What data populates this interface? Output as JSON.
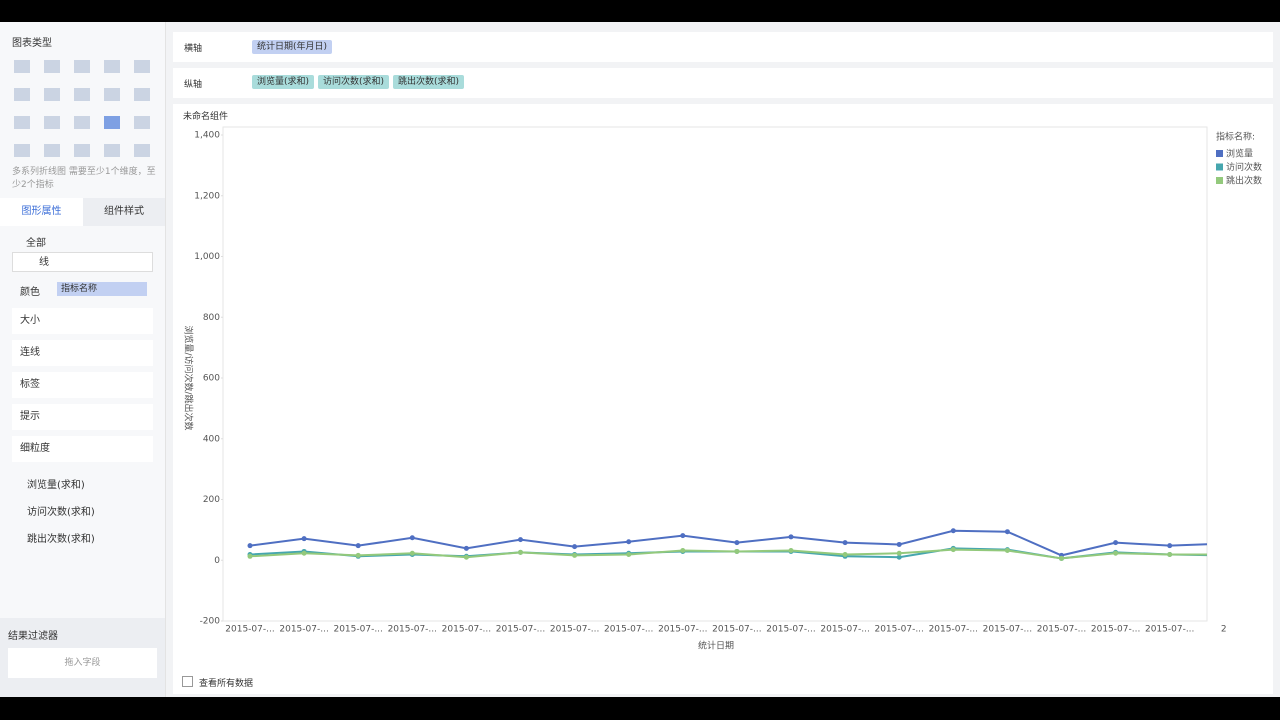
{
  "sidebar": {
    "title": "图表类型",
    "hint": "多系列折线图 需要至少1个维度，至少2个指标",
    "tabs": [
      "图形属性",
      "组件样式"
    ],
    "all": "全部",
    "mark_type": "线",
    "color_label": "颜色",
    "color_field": "指标名称",
    "properties": [
      "大小",
      "连线",
      "标签",
      "提示",
      "细粒度"
    ],
    "measures": [
      "浏览量(求和)",
      "访问次数(求和)",
      "跳出次数(求和)"
    ],
    "filter_title": "结果过滤器",
    "filter_drop": "拖入字段"
  },
  "toolbar": {
    "x_label": "横轴",
    "x_field": "统计日期(年月日)",
    "y_label": "纵轴",
    "y_fields": [
      "浏览量(求和)",
      "访问次数(求和)",
      "跳出次数(求和)"
    ]
  },
  "component_title": "未命名组件",
  "chart_data": {
    "type": "line",
    "xlabel": "统计日期",
    "ylabel": "浏览量/访问次数/跳出次数",
    "legend_title": "指标名称:",
    "legend": "right",
    "grid": false,
    "categories": [
      "2015-07-...",
      "2015-07-...",
      "2015-07-...",
      "2015-07-...",
      "2015-07-...",
      "2015-07-...",
      "2015-07-...",
      "2015-07-...",
      "2015-07-...",
      "2015-07-...",
      "2015-07-...",
      "2015-07-...",
      "2015-07-...",
      "2015-07-...",
      "2015-07-...",
      "2015-07-...",
      "2015-07-...",
      "2015-07-...",
      "2"
    ],
    "series": [
      {
        "name": "浏览量",
        "color": "#4f6fc2",
        "values": [
          48,
          71,
          48,
          74,
          39,
          68,
          45,
          61,
          81,
          58,
          77,
          58,
          52,
          97,
          94,
          16,
          58,
          48,
          55
        ]
      },
      {
        "name": "访问次数",
        "color": "#46a6ae",
        "values": [
          19,
          29,
          13,
          19,
          13,
          26,
          19,
          23,
          29,
          29,
          29,
          13,
          10,
          39,
          35,
          6,
          26,
          19,
          16
        ]
      },
      {
        "name": "跳出次数",
        "color": "#93c97c",
        "values": [
          13,
          23,
          16,
          23,
          10,
          26,
          16,
          19,
          32,
          29,
          32,
          19,
          23,
          35,
          32,
          6,
          23,
          19,
          19
        ]
      }
    ],
    "ylim": [
      -200,
      1400
    ],
    "yticks": [
      {
        "value": -200,
        "label": "-200"
      },
      0,
      200,
      400,
      600,
      800,
      {
        "value": 1000,
        "label": "1,000"
      },
      {
        "value": 1200,
        "label": "1,200"
      },
      {
        "value": 1400,
        "label": "1,400"
      }
    ]
  },
  "footer": {
    "show_all": "查看所有数据"
  }
}
